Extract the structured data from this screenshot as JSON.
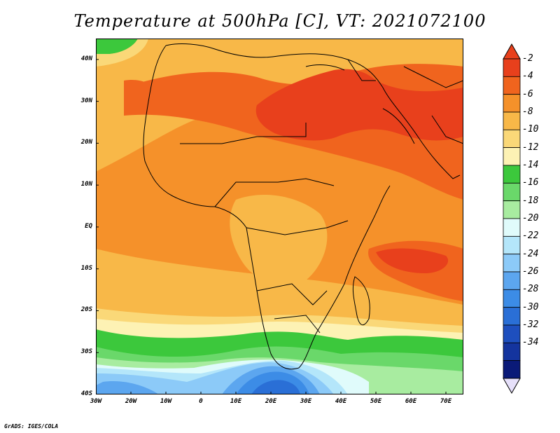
{
  "title": "Temperature at 500hPa [C], VT: 2021072100",
  "credit": "GrADS: IGES/COLA",
  "map": {
    "variable": "Temperature at 500hPa",
    "units": "C",
    "valid_time": "2021072100",
    "lon_range": [
      -30,
      75
    ],
    "lat_range": [
      -40,
      45
    ],
    "lat_labels": [
      "40N",
      "30N",
      "20N",
      "10N",
      "EQ",
      "10S",
      "20S",
      "30S",
      "40S"
    ],
    "lat_values": [
      40,
      30,
      20,
      10,
      0,
      -10,
      -20,
      -30,
      -40
    ],
    "lon_labels": [
      "30W",
      "20W",
      "10W",
      "0",
      "10E",
      "20E",
      "30E",
      "40E",
      "50E",
      "60E",
      "70E"
    ],
    "lon_values": [
      -30,
      -20,
      -10,
      0,
      10,
      20,
      30,
      40,
      50,
      60,
      70
    ]
  },
  "colorbar": {
    "labels": [
      "-2",
      "-4",
      "-6",
      "-8",
      "-10",
      "-12",
      "-14",
      "-16",
      "-18",
      "-20",
      "-22",
      "-24",
      "-26",
      "-28",
      "-30",
      "-32",
      "-34"
    ],
    "colors": [
      "#e8401c",
      "#f0641e",
      "#f5912a",
      "#f8b848",
      "#fad878",
      "#fdf2b4",
      "#3cc83c",
      "#6ad86a",
      "#a8eca0",
      "#e0fbfb",
      "#b4e6fa",
      "#8ccaf8",
      "#5ca6ef",
      "#3c8ce6",
      "#2a6fd6",
      "#1e4fbe",
      "#14349e",
      "#0a1a78"
    ],
    "over_color": "#e8401c",
    "under_color": "#e6e0fa"
  }
}
